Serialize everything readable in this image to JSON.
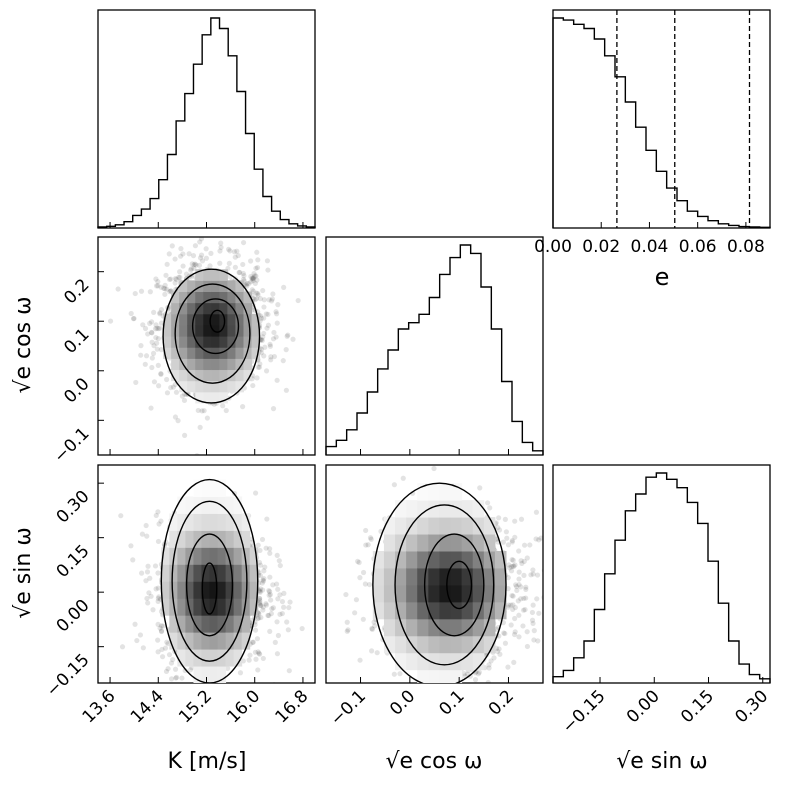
{
  "chart_data": {
    "type": "corner",
    "parameters": [
      {
        "key": "K",
        "label": "K [m/s]"
      },
      {
        "key": "sqrt_e_cos_w",
        "label": "√e cos ω"
      },
      {
        "key": "sqrt_e_sin_w",
        "label": "√e sin ω"
      }
    ],
    "diag_K": {
      "type": "histogram",
      "x_range": [
        13.4,
        17.0
      ],
      "xlabel": "K [m/s]",
      "ticks": [
        "13.6",
        "14.4",
        "15.2",
        "16.0",
        "16.8"
      ],
      "tick_values": [
        13.6,
        14.4,
        15.2,
        16.0,
        16.8
      ],
      "counts": [
        0.005,
        0.008,
        0.015,
        0.03,
        0.06,
        0.09,
        0.14,
        0.23,
        0.35,
        0.51,
        0.64,
        0.78,
        0.92,
        1.0,
        0.95,
        0.82,
        0.65,
        0.45,
        0.28,
        0.15,
        0.08,
        0.04,
        0.02,
        0.01,
        0.005
      ]
    },
    "diag_cos": {
      "type": "histogram",
      "x_range": [
        -0.17,
        0.27
      ],
      "xlabel": "√e cos ω",
      "ticks": [
        "−0.1",
        "0.0",
        "0.1",
        "0.2"
      ],
      "tick_values": [
        -0.1,
        0.0,
        0.1,
        0.2
      ],
      "counts": [
        0.04,
        0.07,
        0.12,
        0.2,
        0.3,
        0.41,
        0.5,
        0.6,
        0.63,
        0.67,
        0.75,
        0.86,
        0.94,
        1.0,
        0.96,
        0.8,
        0.6,
        0.35,
        0.16,
        0.06,
        0.02
      ]
    },
    "diag_sin": {
      "type": "histogram",
      "x_range": [
        -0.28,
        0.32
      ],
      "xlabel": "√e sin ω",
      "ticks": [
        "−0.15",
        "0.00",
        "0.15",
        "0.30"
      ],
      "tick_values": [
        -0.15,
        0.0,
        0.15,
        0.3
      ],
      "counts": [
        0.03,
        0.06,
        0.12,
        0.2,
        0.35,
        0.52,
        0.68,
        0.82,
        0.9,
        0.98,
        1.0,
        0.97,
        0.93,
        0.86,
        0.76,
        0.58,
        0.38,
        0.2,
        0.09,
        0.04,
        0.02
      ]
    },
    "inset_e": {
      "type": "histogram",
      "x_range": [
        0.0,
        0.09
      ],
      "xlabel": "e",
      "ticks": [
        "0.00",
        "0.02",
        "0.04",
        "0.06",
        "0.08"
      ],
      "tick_values": [
        0.0,
        0.02,
        0.04,
        0.06,
        0.08
      ],
      "quantiles": [
        0.0265,
        0.0505,
        0.0815
      ],
      "counts": [
        1.0,
        0.99,
        0.97,
        0.95,
        0.9,
        0.82,
        0.72,
        0.6,
        0.48,
        0.37,
        0.27,
        0.19,
        0.13,
        0.08,
        0.055,
        0.035,
        0.02,
        0.012,
        0.007,
        0.005,
        0.003
      ]
    },
    "scatter_cos_vs_K": {
      "type": "scatter-density",
      "x_range": [
        13.4,
        17.0
      ],
      "y_range": [
        -0.17,
        0.27
      ],
      "ylabel": "√e cos ω",
      "yticks": [
        "−0.1",
        "0.0",
        "0.1",
        "0.2"
      ],
      "ytick_values": [
        -0.1,
        0.0,
        0.1,
        0.2
      ],
      "center": [
        15.3,
        0.09
      ],
      "spread": [
        0.45,
        0.065
      ],
      "contours": [
        {
          "cx": 15.38,
          "cy": 0.1,
          "rx": 0.12,
          "ry": 0.022
        },
        {
          "cx": 15.35,
          "cy": 0.09,
          "rx": 0.38,
          "ry": 0.055
        },
        {
          "cx": 15.3,
          "cy": 0.075,
          "rx": 0.62,
          "ry": 0.1
        },
        {
          "cx": 15.28,
          "cy": 0.07,
          "rx": 0.8,
          "ry": 0.135
        }
      ]
    },
    "scatter_sin_vs_K": {
      "type": "scatter-density",
      "x_range": [
        13.4,
        17.0
      ],
      "y_range": [
        -0.25,
        0.35
      ],
      "ylabel": "√e sin ω",
      "yticks": [
        "−0.15",
        "0.00",
        "0.15",
        "0.30"
      ],
      "ytick_values": [
        -0.15,
        0.0,
        0.15,
        0.3
      ],
      "center": [
        15.3,
        0.0
      ],
      "spread": [
        0.45,
        0.1
      ],
      "contours": [
        {
          "cx": 15.25,
          "cy": 0.01,
          "rx": 0.12,
          "ry": 0.07
        },
        {
          "cx": 15.25,
          "cy": 0.02,
          "rx": 0.38,
          "ry": 0.14
        },
        {
          "cx": 15.25,
          "cy": 0.03,
          "rx": 0.62,
          "ry": 0.22
        },
        {
          "cx": 15.25,
          "cy": 0.03,
          "rx": 0.8,
          "ry": 0.28
        }
      ]
    },
    "scatter_sin_vs_cos": {
      "type": "scatter-density",
      "x_range": [
        -0.17,
        0.27
      ],
      "y_range": [
        -0.25,
        0.35
      ],
      "center": [
        0.08,
        0.01
      ],
      "spread": [
        0.075,
        0.1
      ],
      "contours": [
        {
          "cx": 0.1,
          "cy": 0.02,
          "rx": 0.025,
          "ry": 0.065
        },
        {
          "cx": 0.09,
          "cy": 0.02,
          "rx": 0.06,
          "ry": 0.14
        },
        {
          "cx": 0.07,
          "cy": 0.02,
          "rx": 0.1,
          "ry": 0.22
        },
        {
          "cx": 0.06,
          "cy": 0.02,
          "rx": 0.135,
          "ry": 0.28
        }
      ]
    }
  }
}
